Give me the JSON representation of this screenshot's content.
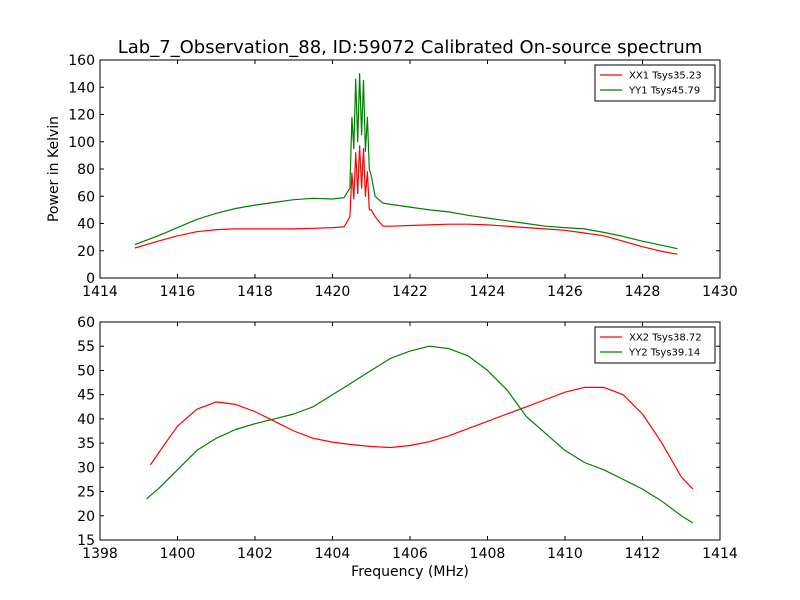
{
  "figure": {
    "title": "Lab_7_Observation_88, ID:59072 Calibrated On-source spectrum"
  },
  "chart_data": [
    {
      "type": "line",
      "title": "Lab_7_Observation_88, ID:59072 Calibrated On-source spectrum",
      "xlabel": "",
      "ylabel": "Power in Kelvin",
      "xlim": [
        1414,
        1430
      ],
      "ylim": [
        0,
        160
      ],
      "xticks": [
        1414,
        1416,
        1418,
        1420,
        1422,
        1424,
        1426,
        1428,
        1430
      ],
      "yticks": [
        0,
        20,
        40,
        60,
        80,
        100,
        120,
        140,
        160
      ],
      "grid": false,
      "legend": "top-right",
      "series": [
        {
          "name": "XX1 Tsys35.23",
          "color": "#ff0000",
          "x": [
            1414.9,
            1415.5,
            1416.0,
            1416.5,
            1417.0,
            1417.5,
            1418.0,
            1418.5,
            1419.0,
            1419.5,
            1420.0,
            1420.3,
            1420.45,
            1420.5,
            1420.55,
            1420.6,
            1420.65,
            1420.7,
            1420.75,
            1420.8,
            1420.85,
            1420.9,
            1420.95,
            1421.0,
            1421.1,
            1421.3,
            1421.5,
            1422.0,
            1422.5,
            1423.0,
            1423.5,
            1424.0,
            1424.5,
            1425.0,
            1425.5,
            1426.0,
            1426.5,
            1427.0,
            1427.5,
            1428.0,
            1428.5,
            1428.9
          ],
          "y": [
            22,
            27,
            31,
            34,
            35.5,
            36,
            36,
            36,
            36,
            36.5,
            37,
            37.5,
            45,
            77,
            58,
            92,
            62,
            97,
            66,
            95,
            60,
            78,
            50,
            50,
            45,
            38,
            38,
            38.5,
            39,
            39.5,
            39.5,
            39,
            38,
            37,
            36,
            35,
            33,
            31,
            27,
            23,
            19.5,
            17.5
          ]
        },
        {
          "name": "YY1 Tsys45.79",
          "color": "#008000",
          "x": [
            1414.9,
            1415.5,
            1416.0,
            1416.5,
            1417.0,
            1417.5,
            1418.0,
            1418.5,
            1419.0,
            1419.5,
            1420.0,
            1420.3,
            1420.45,
            1420.5,
            1420.55,
            1420.6,
            1420.65,
            1420.7,
            1420.75,
            1420.8,
            1420.85,
            1420.9,
            1420.95,
            1421.0,
            1421.1,
            1421.3,
            1421.5,
            1422.0,
            1422.5,
            1423.0,
            1423.5,
            1424.0,
            1424.5,
            1425.0,
            1425.5,
            1426.0,
            1426.5,
            1427.0,
            1427.5,
            1428.0,
            1428.5,
            1428.9
          ],
          "y": [
            24.5,
            31,
            37,
            43,
            47.5,
            51,
            53.5,
            55.5,
            57.5,
            58.5,
            58,
            59,
            66,
            118,
            95,
            146,
            100,
            150,
            105,
            145,
            93,
            118,
            80,
            75,
            60,
            55,
            54,
            52,
            50,
            48.5,
            46,
            44,
            42,
            40,
            38,
            37,
            36,
            33.5,
            30.5,
            27,
            24,
            21.5
          ]
        }
      ]
    },
    {
      "type": "line",
      "title": "",
      "xlabel": "Frequency (MHz)",
      "ylabel": "",
      "xlim": [
        1398,
        1414
      ],
      "ylim": [
        15,
        60
      ],
      "xticks": [
        1398,
        1400,
        1402,
        1404,
        1406,
        1408,
        1410,
        1412,
        1414
      ],
      "yticks": [
        15,
        20,
        25,
        30,
        35,
        40,
        45,
        50,
        55,
        60
      ],
      "grid": false,
      "legend": "top-right",
      "series": [
        {
          "name": "XX2 Tsys38.72",
          "color": "#ff0000",
          "x": [
            1399.3,
            1399.6,
            1400.0,
            1400.5,
            1401.0,
            1401.5,
            1402.0,
            1402.5,
            1403.0,
            1403.5,
            1404.0,
            1404.5,
            1405.0,
            1405.5,
            1406.0,
            1406.5,
            1407.0,
            1407.5,
            1408.0,
            1408.5,
            1409.0,
            1409.5,
            1410.0,
            1410.5,
            1411.0,
            1411.5,
            1412.0,
            1412.5,
            1413.0,
            1413.3
          ],
          "y": [
            30.5,
            34,
            38.5,
            42,
            43.5,
            43,
            41.5,
            39.5,
            37.5,
            36,
            35.2,
            34.7,
            34.3,
            34.1,
            34.5,
            35.3,
            36.5,
            38,
            39.5,
            41,
            42.5,
            44,
            45.5,
            46.5,
            46.5,
            45,
            41,
            35,
            28,
            25.5
          ]
        },
        {
          "name": "YY2 Tsys39.14",
          "color": "#008000",
          "x": [
            1399.2,
            1399.5,
            1400.0,
            1400.5,
            1401.0,
            1401.5,
            1402.0,
            1402.5,
            1403.0,
            1403.5,
            1404.0,
            1404.5,
            1405.0,
            1405.5,
            1406.0,
            1406.5,
            1407.0,
            1407.5,
            1408.0,
            1408.5,
            1409.0,
            1409.5,
            1410.0,
            1410.5,
            1411.0,
            1411.5,
            1412.0,
            1412.5,
            1413.0,
            1413.3
          ],
          "y": [
            23.5,
            25.5,
            29.5,
            33.5,
            36,
            37.8,
            39,
            40,
            41,
            42.5,
            45,
            47.5,
            50,
            52.5,
            54,
            55,
            54.5,
            53,
            50,
            46,
            40.5,
            37,
            33.5,
            31,
            29.5,
            27.5,
            25.5,
            23,
            20,
            18.5
          ]
        }
      ]
    }
  ]
}
